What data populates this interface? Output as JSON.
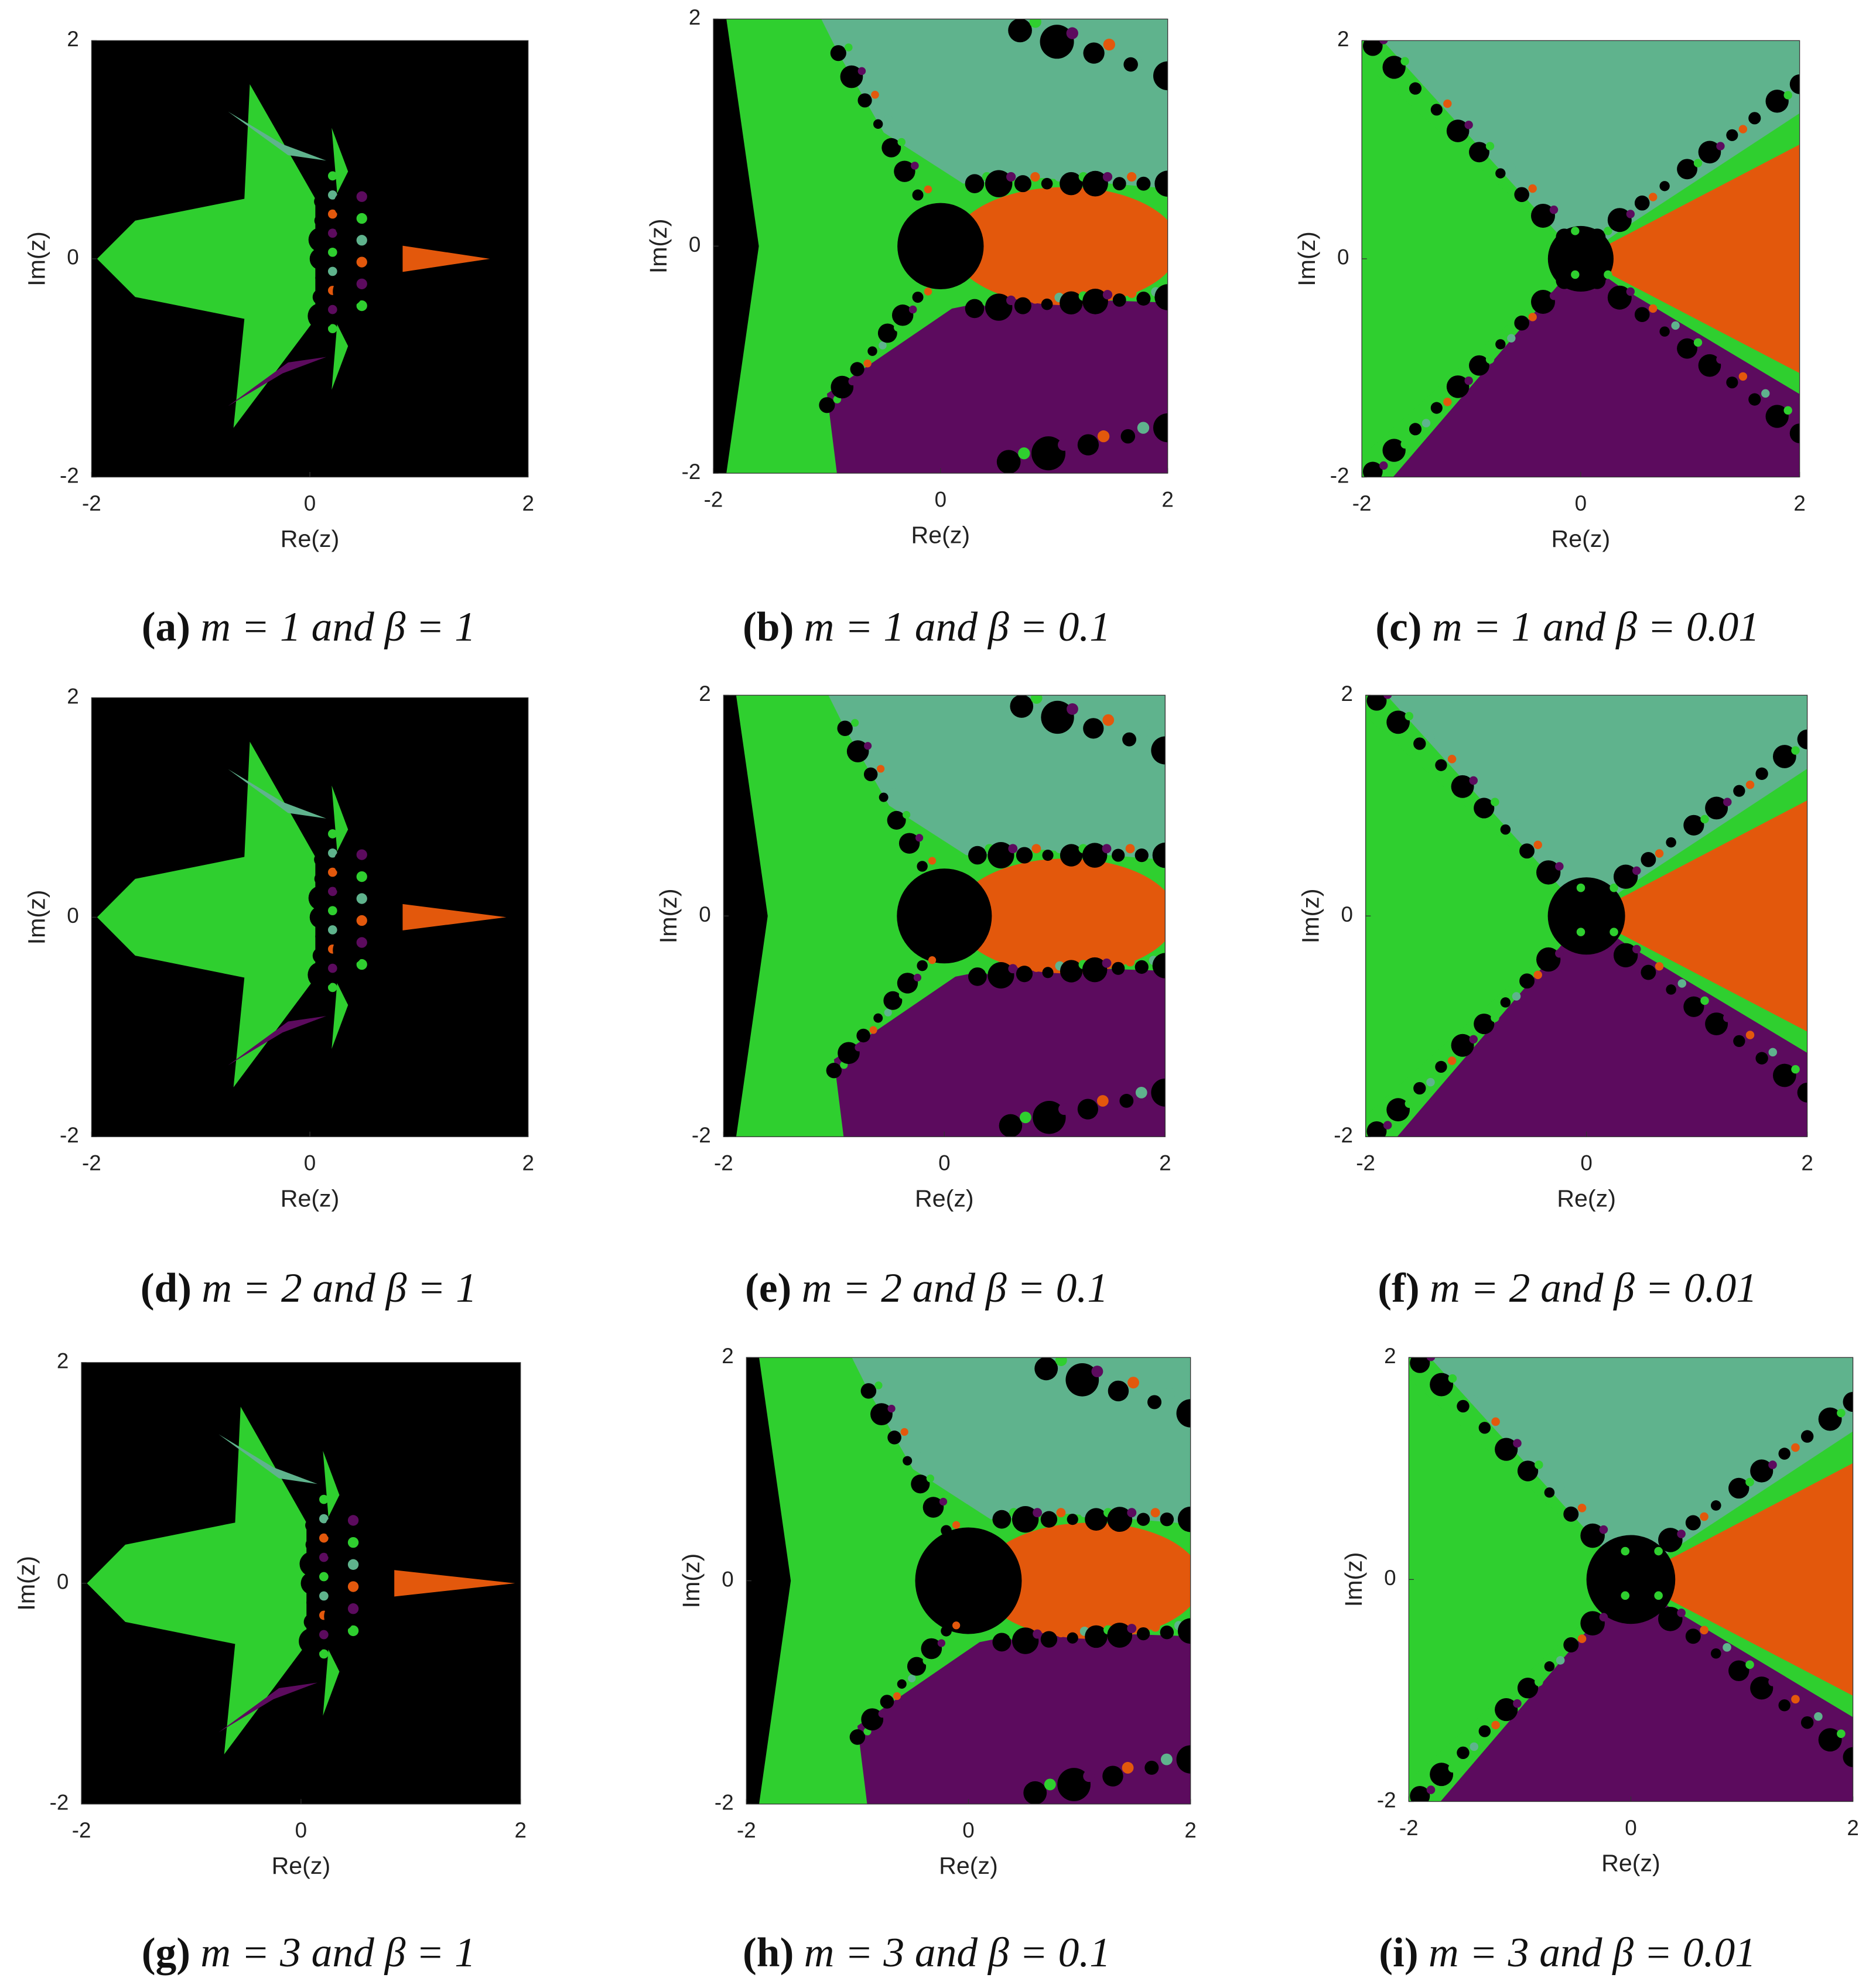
{
  "chart_data": [
    {
      "type": "image",
      "caption_label": "(a)",
      "caption": "m = 1 and β = 1",
      "xlabel": "Re(z)",
      "ylabel": "Im(z)",
      "xlim": [
        -2,
        2
      ],
      "ylim": [
        -2,
        2
      ],
      "xticks": [
        -2,
        0,
        2
      ],
      "yticks": [
        -2,
        0,
        2
      ]
    },
    {
      "type": "image",
      "caption_label": "(b)",
      "caption": "m = 1 and β = 0.1",
      "xlabel": "Re(z)",
      "ylabel": "Im(z)",
      "xlim": [
        -2,
        2
      ],
      "ylim": [
        -2,
        2
      ],
      "xticks": [
        -2,
        0,
        2
      ],
      "yticks": [
        -2,
        0,
        2
      ]
    },
    {
      "type": "image",
      "caption_label": "(c)",
      "caption": "m = 1 and β = 0.01",
      "xlabel": "Re(z)",
      "ylabel": "Im(z)",
      "xlim": [
        -2,
        2
      ],
      "ylim": [
        -2,
        2
      ],
      "xticks": [
        -2,
        0,
        2
      ],
      "yticks": [
        -2,
        0,
        2
      ]
    },
    {
      "type": "image",
      "caption_label": "(d)",
      "caption": "m = 2 and β = 1",
      "xlabel": "Re(z)",
      "ylabel": "Im(z)",
      "xlim": [
        -2,
        2
      ],
      "ylim": [
        -2,
        2
      ],
      "xticks": [
        -2,
        0,
        2
      ],
      "yticks": [
        -2,
        0,
        2
      ]
    },
    {
      "type": "image",
      "caption_label": "(e)",
      "caption": "m = 2 and β = 0.1",
      "xlabel": "Re(z)",
      "ylabel": "Im(z)",
      "xlim": [
        -2,
        2
      ],
      "ylim": [
        -2,
        2
      ],
      "xticks": [
        -2,
        0,
        2
      ],
      "yticks": [
        -2,
        0,
        2
      ]
    },
    {
      "type": "image",
      "caption_label": "(f)",
      "caption": "m = 2 and β = 0.01",
      "xlabel": "Re(z)",
      "ylabel": "Im(z)",
      "xlim": [
        -2,
        2
      ],
      "ylim": [
        -2,
        2
      ],
      "xticks": [
        -2,
        0,
        2
      ],
      "yticks": [
        -2,
        0,
        2
      ]
    },
    {
      "type": "image",
      "caption_label": "(g)",
      "caption": "m = 3 and β = 1",
      "xlabel": "Re(z)",
      "ylabel": "Im(z)",
      "xlim": [
        -2,
        2
      ],
      "ylim": [
        -2,
        2
      ],
      "xticks": [
        -2,
        0,
        2
      ],
      "yticks": [
        -2,
        0,
        2
      ]
    },
    {
      "type": "image",
      "caption_label": "(h)",
      "caption": "m = 3 and β = 0.1",
      "xlabel": "Re(z)",
      "ylabel": "Im(z)",
      "xlim": [
        -2,
        2
      ],
      "ylim": [
        -2,
        2
      ],
      "xticks": [
        -2,
        0,
        2
      ],
      "yticks": [
        -2,
        0,
        2
      ]
    },
    {
      "type": "image",
      "caption_label": "(i)",
      "caption": "m = 3 and β = 0.01",
      "xlabel": "Re(z)",
      "ylabel": "Im(z)",
      "xlim": [
        -2,
        2
      ],
      "ylim": [
        -2,
        2
      ],
      "xticks": [
        -2,
        0,
        2
      ],
      "yticks": [
        -2,
        0,
        2
      ]
    }
  ]
}
